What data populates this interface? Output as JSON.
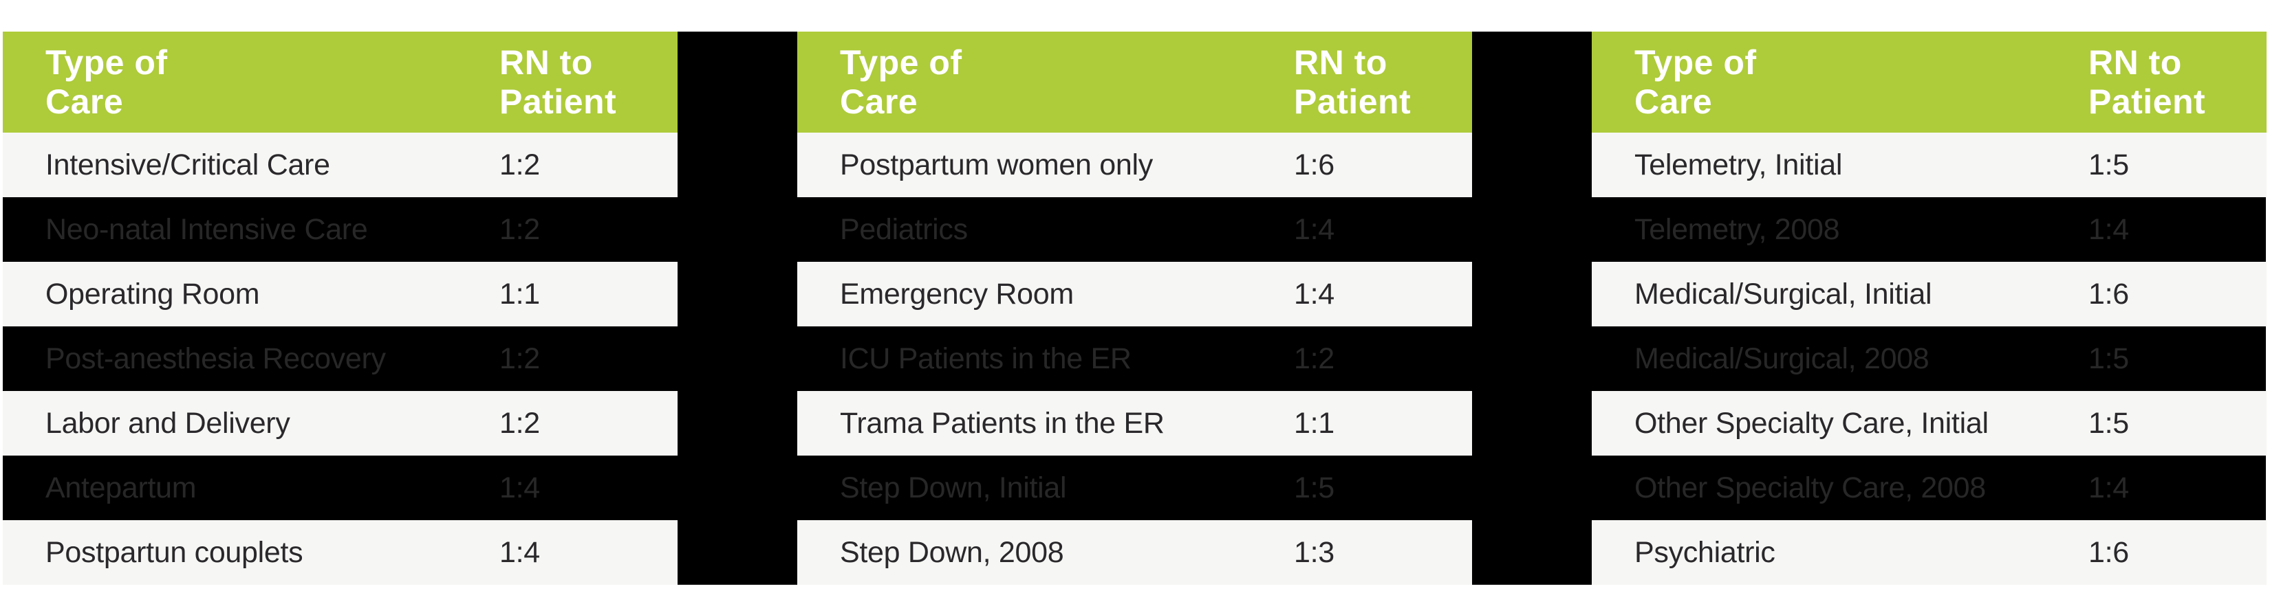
{
  "colors": {
    "header_green": "#aecb3a",
    "header_text": "#ffffff",
    "light_row_bg": "#f6f7f4",
    "light_row_text": "#2a282b",
    "dark_row_bg": "#000000",
    "dark_row_text": "#272727",
    "band_bg": "#000000",
    "page_bg": "#ffffff"
  },
  "tables": [
    {
      "headers": {
        "col1": "Type of\nCare",
        "col2": "RN to\nPatient"
      },
      "rows": [
        {
          "care": "Intensive/Critical Care",
          "ratio": "1:2",
          "variant": "light"
        },
        {
          "care": "Neo-natal Intensive Care",
          "ratio": "1:2",
          "variant": "dark"
        },
        {
          "care": "Operating Room",
          "ratio": "1:1",
          "variant": "light"
        },
        {
          "care": "Post-anesthesia Recovery",
          "ratio": "1:2",
          "variant": "dark"
        },
        {
          "care": "Labor and Delivery",
          "ratio": "1:2",
          "variant": "light"
        },
        {
          "care": "Antepartum",
          "ratio": "1:4",
          "variant": "dark"
        },
        {
          "care": "Postpartun couplets",
          "ratio": "1:4",
          "variant": "light"
        }
      ]
    },
    {
      "headers": {
        "col1": "Type of\nCare",
        "col2": "RN to\nPatient"
      },
      "rows": [
        {
          "care": "Postpartum women only",
          "ratio": "1:6",
          "variant": "light"
        },
        {
          "care": "Pediatrics",
          "ratio": "1:4",
          "variant": "dark"
        },
        {
          "care": "Emergency Room",
          "ratio": "1:4",
          "variant": "light"
        },
        {
          "care": "ICU Patients in the ER",
          "ratio": "1:2",
          "variant": "dark"
        },
        {
          "care": "Trama Patients in the ER",
          "ratio": "1:1",
          "variant": "light"
        },
        {
          "care": "Step Down, Initial",
          "ratio": "1:5",
          "variant": "dark"
        },
        {
          "care": "Step Down, 2008",
          "ratio": "1:3",
          "variant": "light"
        }
      ]
    },
    {
      "headers": {
        "col1": "Type of\nCare",
        "col2": "RN to\nPatient"
      },
      "rows": [
        {
          "care": "Telemetry, Initial",
          "ratio": "1:5",
          "variant": "light"
        },
        {
          "care": "Telemetry, 2008",
          "ratio": "1:4",
          "variant": "dark"
        },
        {
          "care": "Medical/Surgical, Initial",
          "ratio": "1:6",
          "variant": "light"
        },
        {
          "care": "Medical/Surgical, 2008",
          "ratio": "1:5",
          "variant": "dark"
        },
        {
          "care": "Other Specialty Care, Initial",
          "ratio": "1:5",
          "variant": "light"
        },
        {
          "care": "Other Specialty Care, 2008",
          "ratio": "1:4",
          "variant": "dark"
        },
        {
          "care": "Psychiatric",
          "ratio": "1:6",
          "variant": "light"
        }
      ]
    }
  ],
  "chart_data": [
    {
      "type": "table",
      "columns": [
        "Type of Care",
        "RN to Patient"
      ],
      "rows": [
        [
          "Intensive/Critical Care",
          "1:2"
        ],
        [
          "Neo-natal Intensive Care",
          "1:2"
        ],
        [
          "Operating Room",
          "1:1"
        ],
        [
          "Post-anesthesia Recovery",
          "1:2"
        ],
        [
          "Labor and Delivery",
          "1:2"
        ],
        [
          "Antepartum",
          "1:4"
        ],
        [
          "Postpartun couplets",
          "1:4"
        ]
      ]
    },
    {
      "type": "table",
      "columns": [
        "Type of Care",
        "RN to Patient"
      ],
      "rows": [
        [
          "Postpartum women only",
          "1:6"
        ],
        [
          "Pediatrics",
          "1:4"
        ],
        [
          "Emergency Room",
          "1:4"
        ],
        [
          "ICU Patients in the ER",
          "1:2"
        ],
        [
          "Trama Patients in the ER",
          "1:1"
        ],
        [
          "Step Down, Initial",
          "1:5"
        ],
        [
          "Step Down, 2008",
          "1:3"
        ]
      ]
    },
    {
      "type": "table",
      "columns": [
        "Type of Care",
        "RN to Patient"
      ],
      "rows": [
        [
          "Telemetry, Initial",
          "1:5"
        ],
        [
          "Telemetry, 2008",
          "1:4"
        ],
        [
          "Medical/Surgical, Initial",
          "1:6"
        ],
        [
          "Medical/Surgical, 2008",
          "1:5"
        ],
        [
          "Other Specialty Care, Initial",
          "1:5"
        ],
        [
          "Other Specialty Care, 2008",
          "1:4"
        ],
        [
          "Psychiatric",
          "1:6"
        ]
      ]
    }
  ]
}
